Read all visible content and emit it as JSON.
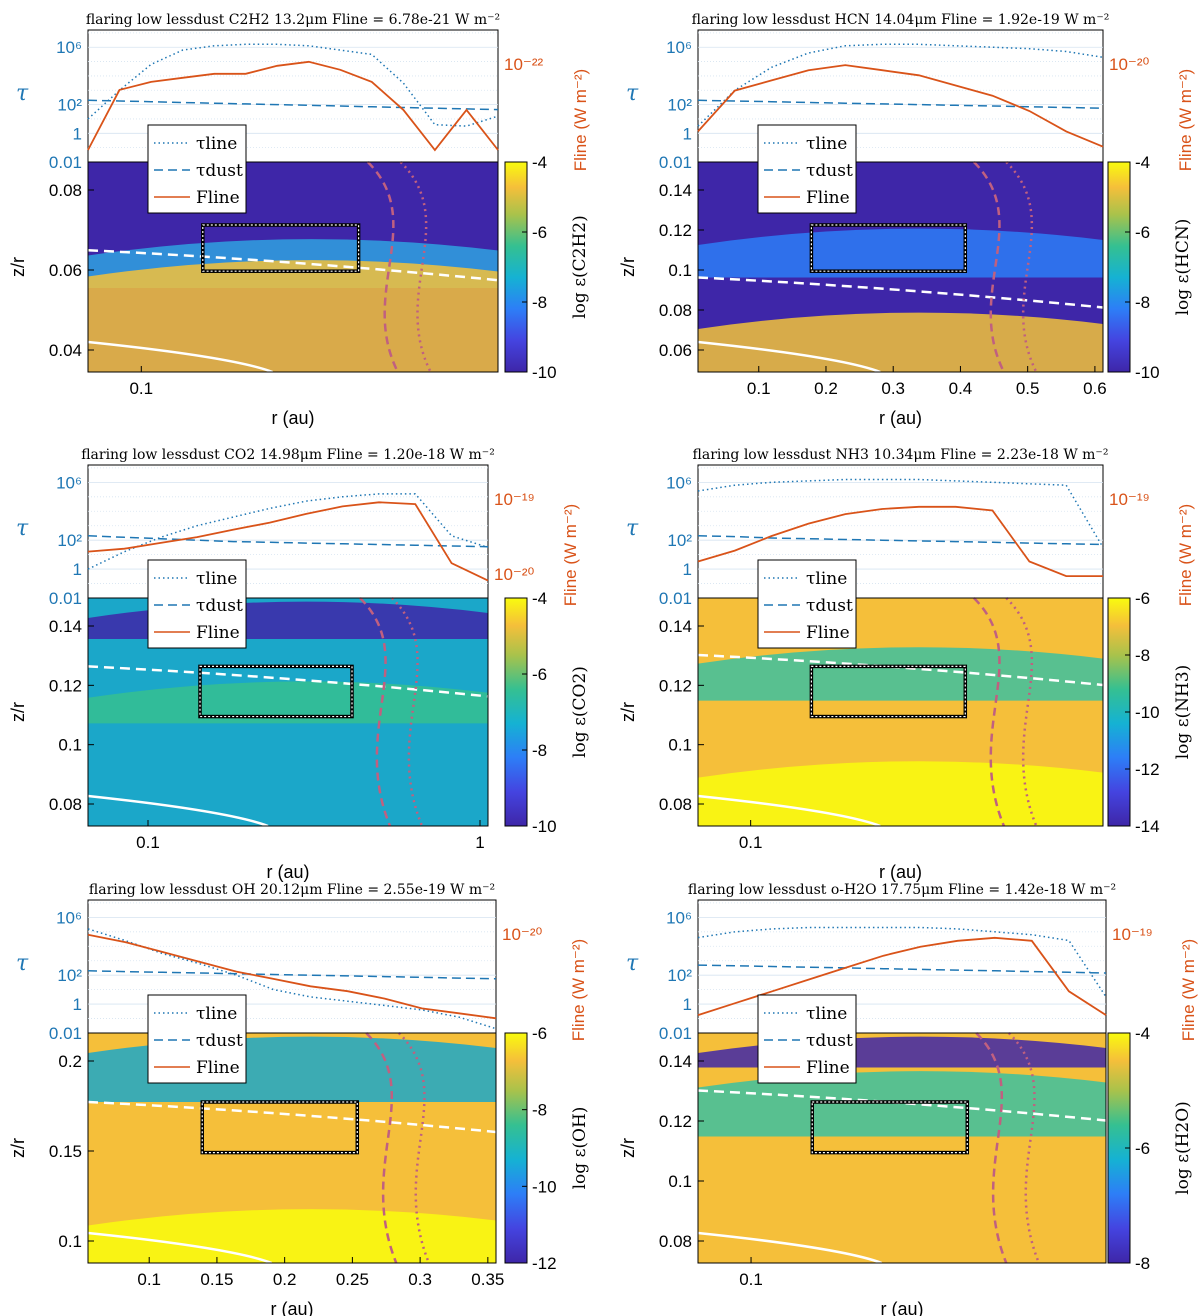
{
  "figure": {
    "panels": [
      {
        "title": "flaring low lessdust C2H2 13.2μm Fline = 6.78e-21 W m⁻²",
        "species": "C2H2",
        "colorbar_label": "log ε(C2H2)",
        "colorbar_ticks": [
          "-4",
          "-6",
          "-8",
          "-10"
        ],
        "tau_ticks": [
          "10⁶",
          "10²",
          "1",
          "0.01"
        ],
        "flux_ticks": [
          "10⁻²²"
        ],
        "zr_ticks": [
          "0.08",
          "0.06",
          "0.04"
        ],
        "r_ticks": [
          "0.1"
        ],
        "xlabel": "r (au)",
        "ylabel_zr": "z/r",
        "ylabel_tau": "τ",
        "ylabel_flux": "Fline (W m⁻²)",
        "legend": [
          "τline",
          "τdust",
          "Fline"
        ]
      },
      {
        "title": "flaring low lessdust HCN 14.04μm Fline = 1.92e-19 W m⁻²",
        "species": "HCN",
        "colorbar_label": "log ε(HCN)",
        "colorbar_ticks": [
          "-4",
          "-6",
          "-8",
          "-10"
        ],
        "tau_ticks": [
          "10⁶",
          "10²",
          "1",
          "0.01"
        ],
        "flux_ticks": [
          "10⁻²⁰"
        ],
        "zr_ticks": [
          "0.14",
          "0.12",
          "0.1",
          "0.08",
          "0.06"
        ],
        "r_ticks": [
          "0.1",
          "0.2",
          "0.3",
          "0.4",
          "0.5",
          "0.6"
        ],
        "xlabel": "r (au)",
        "ylabel_zr": "z/r",
        "ylabel_tau": "τ",
        "ylabel_flux": "Fline (W m⁻²)",
        "legend": [
          "τline",
          "τdust",
          "Fline"
        ]
      },
      {
        "title": "flaring low lessdust CO2 14.98μm Fline = 1.20e-18 W m⁻²",
        "species": "CO2",
        "colorbar_label": "log ε(CO2)",
        "colorbar_ticks": [
          "-4",
          "-6",
          "-8",
          "-10"
        ],
        "tau_ticks": [
          "10⁶",
          "10²",
          "1",
          "0.01"
        ],
        "flux_ticks": [
          "10⁻¹⁹",
          "10⁻²⁰"
        ],
        "zr_ticks": [
          "0.14",
          "0.12",
          "0.1",
          "0.08"
        ],
        "r_ticks": [
          "0.1",
          "1"
        ],
        "xlabel": "r (au)",
        "ylabel_zr": "z/r",
        "ylabel_tau": "τ",
        "ylabel_flux": "Fline (W m⁻²)",
        "legend": [
          "τline",
          "τdust",
          "Fline"
        ]
      },
      {
        "title": "flaring low lessdust NH3 10.34μm Fline = 2.23e-18 W m⁻²",
        "species": "NH3",
        "colorbar_label": "log ε(NH3)",
        "colorbar_ticks": [
          "-6",
          "-8",
          "-10",
          "-12",
          "-14"
        ],
        "tau_ticks": [
          "10⁶",
          "10²",
          "1",
          "0.01"
        ],
        "flux_ticks": [
          "10⁻¹⁹"
        ],
        "zr_ticks": [
          "0.14",
          "0.12",
          "0.1",
          "0.08"
        ],
        "r_ticks": [
          "0.1"
        ],
        "xlabel": "r (au)",
        "ylabel_zr": "z/r",
        "ylabel_tau": "τ",
        "ylabel_flux": "Fline (W m⁻²)",
        "legend": [
          "τline",
          "τdust",
          "Fline"
        ]
      },
      {
        "title": "flaring low lessdust OH 20.12μm Fline = 2.55e-19 W m⁻²",
        "species": "OH",
        "colorbar_label": "log ε(OH)",
        "colorbar_ticks": [
          "-6",
          "-8",
          "-10",
          "-12"
        ],
        "tau_ticks": [
          "10⁶",
          "10²",
          "1",
          "0.01"
        ],
        "flux_ticks": [
          "10⁻²⁰"
        ],
        "zr_ticks": [
          "0.2",
          "0.15",
          "0.1"
        ],
        "r_ticks": [
          "0.1",
          "0.15",
          "0.2",
          "0.25",
          "0.3",
          "0.35"
        ],
        "xlabel": "r (au)",
        "ylabel_zr": "z/r",
        "ylabel_tau": "τ",
        "ylabel_flux": "Fline (W m⁻²)",
        "legend": [
          "τline",
          "τdust",
          "Fline"
        ]
      },
      {
        "title": "flaring low lessdust o-H2O 17.75μm Fline = 1.42e-18 W m⁻²",
        "species": "H2O",
        "colorbar_label": "log ε(H2O)",
        "colorbar_ticks": [
          "-4",
          "-6",
          "-8"
        ],
        "tau_ticks": [
          "10⁶",
          "10²",
          "1",
          "0.01"
        ],
        "flux_ticks": [
          "10⁻¹⁹"
        ],
        "zr_ticks": [
          "0.14",
          "0.12",
          "0.1",
          "0.08"
        ],
        "r_ticks": [
          "0.1"
        ],
        "xlabel": "r (au)",
        "ylabel_zr": "z/r",
        "ylabel_tau": "τ",
        "ylabel_flux": "Fline (W m⁻²)",
        "legend": [
          "τline",
          "τdust",
          "Fline"
        ]
      }
    ],
    "colors": {
      "tau": "#1f77b4",
      "flux": "#d95319",
      "colormap_low": "#3e26a8",
      "colormap_high": "#f9fb0e"
    }
  },
  "chart_data": [
    {
      "type": "heatmap",
      "species": "C2H2",
      "x_scale": "log",
      "colorbar_range": [
        -10,
        -4
      ],
      "tau_line_profile": [
        1,
        3,
        4.8,
        5.8,
        6.1,
        6.2,
        6.2,
        6.1,
        5.8,
        5.5,
        3.5,
        0.6,
        0.5,
        1.2
      ],
      "tau_dust_profile": [
        2.3,
        2.25,
        2.2,
        2.15,
        2.1,
        2.05,
        2.0,
        1.95,
        1.9,
        1.85,
        1.8,
        1.75,
        1.7,
        1.65
      ],
      "flux_profile_log": [
        -23.5,
        -22.0,
        -21.8,
        -21.7,
        -21.6,
        -21.6,
        -21.4,
        -21.3,
        -21.5,
        -21.8,
        -22.5,
        -23.5,
        -22.5,
        -23.5
      ]
    },
    {
      "type": "heatmap",
      "species": "HCN",
      "x_scale": "log",
      "colorbar_range": [
        -10,
        -4
      ],
      "tau_line_profile": [
        0.5,
        3,
        4.6,
        5.6,
        6.1,
        6.2,
        6.2,
        6.1,
        6.0,
        5.9,
        5.7,
        5.3
      ],
      "tau_dust_profile": [
        2.3,
        2.25,
        2.2,
        2.15,
        2.1,
        2.05,
        2.0,
        1.95,
        1.9,
        1.85,
        1.8,
        1.75
      ],
      "flux_profile_log": [
        -21.5,
        -20.7,
        -20.5,
        -20.3,
        -20.2,
        -20.3,
        -20.4,
        -20.6,
        -20.8,
        -21.1,
        -21.5,
        -21.8
      ]
    },
    {
      "type": "heatmap",
      "species": "CO2",
      "x_scale": "log",
      "colorbar_range": [
        -10,
        -4
      ],
      "tau_line_profile": [
        0,
        1.2,
        2.2,
        3,
        3.6,
        4.2,
        4.7,
        5.0,
        5.2,
        5.2,
        2.3,
        1.5
      ],
      "tau_dust_profile": [
        2.3,
        2.2,
        2.1,
        2.0,
        1.9,
        1.85,
        1.8,
        1.75,
        1.7,
        1.65,
        1.6,
        1.55
      ],
      "flux_profile_log": [
        -20.1,
        -20.05,
        -19.95,
        -19.85,
        -19.72,
        -19.6,
        -19.45,
        -19.32,
        -19.25,
        -19.28,
        -20.3,
        -20.6
      ]
    },
    {
      "type": "heatmap",
      "species": "NH3",
      "x_scale": "log",
      "colorbar_range": [
        -14,
        -6
      ],
      "tau_line_profile": [
        5.4,
        5.8,
        6.0,
        6.1,
        6.2,
        6.2,
        6.2,
        6.1,
        6.0,
        5.9,
        5.8,
        1.5
      ],
      "tau_dust_profile": [
        2.3,
        2.25,
        2.15,
        2.1,
        2.05,
        2.0,
        1.95,
        1.9,
        1.85,
        1.8,
        1.75,
        1.7
      ],
      "flux_profile_log": [
        -19.9,
        -19.75,
        -19.55,
        -19.38,
        -19.25,
        -19.18,
        -19.15,
        -19.15,
        -19.2,
        -19.9,
        -20.1,
        -20.1
      ]
    },
    {
      "type": "heatmap",
      "species": "OH",
      "x_scale": "log",
      "colorbar_range": [
        -12,
        -6
      ],
      "tau_line_profile": [
        5.2,
        4.4,
        3.5,
        2.8,
        2.0,
        1.0,
        0.5,
        0.2,
        -0.1,
        -0.4,
        -0.9,
        -1.7
      ],
      "tau_dust_profile": [
        2.3,
        2.25,
        2.2,
        2.15,
        2.1,
        2.05,
        2.0,
        1.95,
        1.9,
        1.85,
        1.8,
        1.75
      ],
      "flux_profile_log": [
        -19.7,
        -19.85,
        -20.05,
        -20.25,
        -20.45,
        -20.6,
        -20.75,
        -20.85,
        -21.0,
        -21.2,
        -21.3,
        -21.4
      ]
    },
    {
      "type": "heatmap",
      "species": "H2O",
      "x_scale": "log",
      "colorbar_range": [
        -9,
        -3
      ],
      "tau_line_profile": [
        4.6,
        5.0,
        5.2,
        5.3,
        5.3,
        5.3,
        5.3,
        5.2,
        5.0,
        4.8,
        4.4,
        0.5
      ],
      "tau_dust_profile": [
        2.7,
        2.65,
        2.6,
        2.55,
        2.5,
        2.45,
        2.4,
        2.35,
        2.3,
        2.25,
        2.2,
        2.15
      ],
      "flux_profile_log": [
        -20.6,
        -20.4,
        -20.2,
        -20.0,
        -19.8,
        -19.6,
        -19.45,
        -19.35,
        -19.3,
        -19.35,
        -20.2,
        -20.6
      ]
    }
  ]
}
